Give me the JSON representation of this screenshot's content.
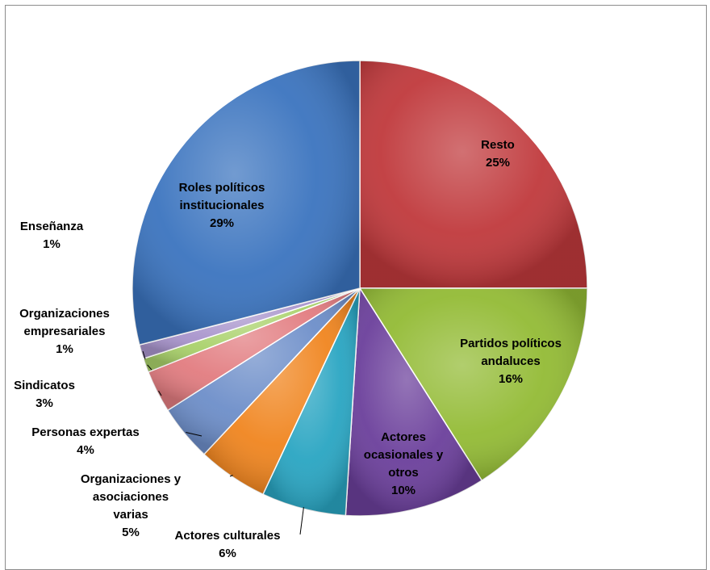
{
  "chart_data": {
    "type": "pie",
    "title": "",
    "slices": [
      {
        "label": "Resto",
        "value": 25,
        "display": "25%",
        "color": "#c0393c"
      },
      {
        "label": "Partidos políticos andaluces",
        "value": 16,
        "display": "16%",
        "color": "#93bb35"
      },
      {
        "label": "Actores ocasionales y otros",
        "value": 10,
        "display": "10%",
        "color": "#6b3f9b"
      },
      {
        "label": "Actores culturales",
        "value": 6,
        "display": "6%",
        "color": "#29a5c2"
      },
      {
        "label": "Organizaciones y asociaciones varias",
        "value": 5,
        "display": "5%",
        "color": "#f0851f"
      },
      {
        "label": "Personas expertas",
        "value": 4,
        "display": "4%",
        "color": "#6d8ec9"
      },
      {
        "label": "Sindicatos",
        "value": 3,
        "display": "3%",
        "color": "#e27c80"
      },
      {
        "label": "Organizaciones empresariales",
        "value": 1,
        "display": "1%",
        "color": "#a9d16a"
      },
      {
        "label": "Enseñanza",
        "value": 1,
        "display": "1%",
        "color": "#a894cc"
      },
      {
        "label": "Roles políticos institucionales",
        "value": 29,
        "display": "29%",
        "color": "#3b74bf"
      }
    ],
    "legend": "none"
  }
}
